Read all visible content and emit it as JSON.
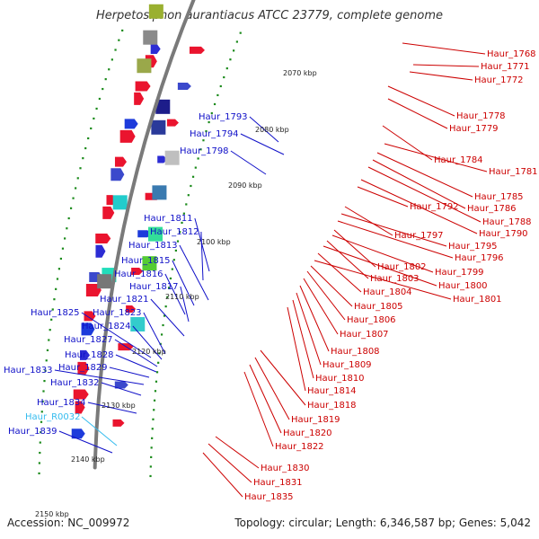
{
  "title": "Herpetosiphon aurantiacus ATCC 23779, complete genome",
  "footer": {
    "accession": "Accession: NC_009972",
    "topology": "Topology: circular; Length: 6,346,587 bp; Genes: 5,042"
  },
  "colors": {
    "minus_strand_label": "#1010c8",
    "plus_strand_label": "#cc0000",
    "rna_label": "#33bbee",
    "backbone": "#7a7a7a",
    "tick": "#1a8a1a"
  },
  "scale_ticks": [
    "2070 kbp",
    "2080 kbp",
    "2090 kbp",
    "2100 kbp",
    "2110 kbp",
    "2120 kbp",
    "2130 kbp",
    "2140 kbp",
    "2150 kbp"
  ],
  "left_labels": [
    {
      "text": "Haur_1793",
      "type": "cds"
    },
    {
      "text": "Haur_1794",
      "type": "cds"
    },
    {
      "text": "Haur_1798",
      "type": "cds"
    },
    {
      "text": "Haur_1811",
      "type": "cds"
    },
    {
      "text": "Haur_1812",
      "type": "cds"
    },
    {
      "text": "Haur_1813",
      "type": "cds"
    },
    {
      "text": "Haur_1815",
      "type": "cds"
    },
    {
      "text": "Haur_1816",
      "type": "cds"
    },
    {
      "text": "Haur_1817",
      "type": "cds"
    },
    {
      "text": "Haur_1821",
      "type": "cds"
    },
    {
      "text": "Haur_1825",
      "type": "cds"
    },
    {
      "text": "Haur_1823",
      "type": "cds"
    },
    {
      "text": "Haur_1824",
      "type": "cds"
    },
    {
      "text": "Haur_1827",
      "type": "cds"
    },
    {
      "text": "Haur_1828",
      "type": "cds"
    },
    {
      "text": "Haur_1833",
      "type": "cds"
    },
    {
      "text": "Haur_1829",
      "type": "cds"
    },
    {
      "text": "Haur_1832",
      "type": "cds"
    },
    {
      "text": "Haur_1834",
      "type": "cds"
    },
    {
      "text": "Haur_R0032",
      "type": "rna"
    },
    {
      "text": "Haur_1839",
      "type": "cds"
    }
  ],
  "right_labels": [
    "Haur_1768",
    "Haur_1771",
    "Haur_1772",
    "Haur_1778",
    "Haur_1779",
    "Haur_1784",
    "Haur_1781",
    "Haur_1785",
    "Haur_1786",
    "Haur_1788",
    "Haur_1790",
    "Haur_1792",
    "Haur_1797",
    "Haur_1795",
    "Haur_1796",
    "Haur_1802",
    "Haur_1799",
    "Haur_1803",
    "Haur_1800",
    "Haur_1804",
    "Haur_1801",
    "Haur_1805",
    "Haur_1806",
    "Haur_1807",
    "Haur_1808",
    "Haur_1809",
    "Haur_1810",
    "Haur_1814",
    "Haur_1818",
    "Haur_1819",
    "Haur_1820",
    "Haur_1822",
    "Haur_1830",
    "Haur_1831",
    "Haur_1835"
  ]
}
